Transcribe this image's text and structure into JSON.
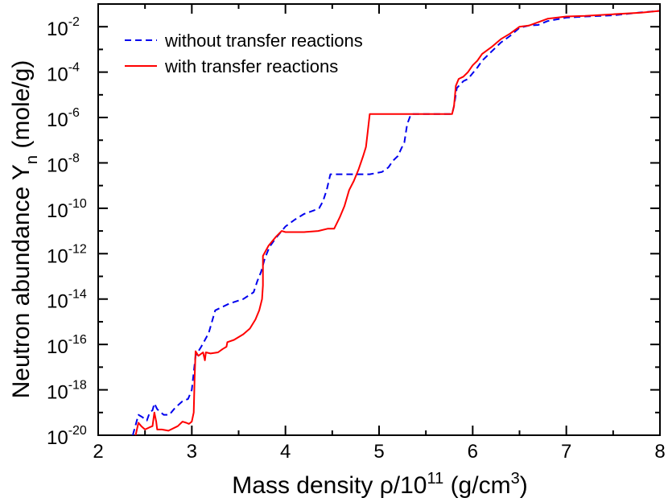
{
  "chart_data": {
    "type": "line",
    "xlabel": "Mass density ρ/10^11 (g/cm^3)",
    "xlabel_parts": {
      "main": "Mass density ρ/10",
      "exp1": "11",
      "mid": " (g/cm",
      "exp2": "3",
      "end": ")"
    },
    "ylabel": "Neutron abundance Y_n (mole/g)",
    "ylabel_parts": {
      "main": "Neutron abundance Y",
      "sub": "n",
      "end": " (mole/g)"
    },
    "xlim": [
      2,
      8
    ],
    "ylim_log10": [
      -20,
      -1
    ],
    "x_ticks": [
      2,
      3,
      4,
      5,
      6,
      7,
      8
    ],
    "x_tick_labels": [
      "2",
      "3",
      "4",
      "5",
      "6",
      "7",
      "8"
    ],
    "y_ticks_log10": [
      -20,
      -18,
      -16,
      -14,
      -12,
      -10,
      -8,
      -6,
      -4,
      -2
    ],
    "y_tick_labels": [
      {
        "base": "10",
        "exp": "-20"
      },
      {
        "base": "10",
        "exp": "-18"
      },
      {
        "base": "10",
        "exp": "-16"
      },
      {
        "base": "10",
        "exp": "-14"
      },
      {
        "base": "10",
        "exp": "-12"
      },
      {
        "base": "10",
        "exp": "-10"
      },
      {
        "base": "10",
        "exp": "-8"
      },
      {
        "base": "10",
        "exp": "-6"
      },
      {
        "base": "10",
        "exp": "-4"
      },
      {
        "base": "10",
        "exp": "-2"
      }
    ],
    "legend_position": "top-left",
    "series": [
      {
        "name": "without transfer reactions",
        "color": "#0000ee",
        "style": "dashed",
        "points_log10": [
          [
            2.37,
            -20.0
          ],
          [
            2.43,
            -19.1
          ],
          [
            2.47,
            -19.2
          ],
          [
            2.52,
            -19.35
          ],
          [
            2.55,
            -19.0
          ],
          [
            2.58,
            -18.9
          ],
          [
            2.6,
            -18.6
          ],
          [
            2.63,
            -18.85
          ],
          [
            2.7,
            -19.1
          ],
          [
            2.76,
            -19.1
          ],
          [
            2.82,
            -18.8
          ],
          [
            2.9,
            -18.5
          ],
          [
            2.96,
            -18.4
          ],
          [
            3.0,
            -18.0
          ],
          [
            3.04,
            -16.5
          ],
          [
            3.1,
            -16.1
          ],
          [
            3.18,
            -15.5
          ],
          [
            3.25,
            -14.5
          ],
          [
            3.4,
            -14.2
          ],
          [
            3.55,
            -14.0
          ],
          [
            3.66,
            -13.7
          ],
          [
            3.7,
            -13.2
          ],
          [
            3.74,
            -12.8
          ],
          [
            3.78,
            -12.2
          ],
          [
            3.83,
            -11.7
          ],
          [
            3.9,
            -11.3
          ],
          [
            4.0,
            -10.8
          ],
          [
            4.1,
            -10.5
          ],
          [
            4.2,
            -10.25
          ],
          [
            4.3,
            -10.1
          ],
          [
            4.36,
            -10.0
          ],
          [
            4.4,
            -9.7
          ],
          [
            4.44,
            -9.2
          ],
          [
            4.48,
            -8.5
          ],
          [
            4.51,
            -8.5
          ],
          [
            4.7,
            -8.5
          ],
          [
            4.9,
            -8.5
          ],
          [
            5.03,
            -8.4
          ],
          [
            5.1,
            -8.2
          ],
          [
            5.15,
            -7.9
          ],
          [
            5.2,
            -7.7
          ],
          [
            5.24,
            -7.35
          ],
          [
            5.27,
            -7.1
          ],
          [
            5.3,
            -6.3
          ],
          [
            5.34,
            -5.85
          ],
          [
            5.5,
            -5.85
          ],
          [
            5.65,
            -5.85
          ],
          [
            5.78,
            -5.85
          ],
          [
            5.8,
            -5.5
          ],
          [
            5.83,
            -4.7
          ],
          [
            5.9,
            -4.4
          ],
          [
            5.95,
            -4.3
          ],
          [
            6.0,
            -4.05
          ],
          [
            6.05,
            -3.8
          ],
          [
            6.1,
            -3.5
          ],
          [
            6.2,
            -3.1
          ],
          [
            6.3,
            -2.7
          ],
          [
            6.4,
            -2.4
          ],
          [
            6.5,
            -2.05
          ],
          [
            6.6,
            -1.95
          ],
          [
            6.7,
            -1.92
          ],
          [
            6.8,
            -1.75
          ],
          [
            7.0,
            -1.6
          ],
          [
            7.2,
            -1.55
          ],
          [
            7.5,
            -1.5
          ],
          [
            7.8,
            -1.37
          ],
          [
            8.0,
            -1.3
          ]
        ]
      },
      {
        "name": "with transfer reactions",
        "color": "#ff0000",
        "style": "solid",
        "points_log10": [
          [
            2.4,
            -20.0
          ],
          [
            2.43,
            -19.45
          ],
          [
            2.46,
            -19.6
          ],
          [
            2.5,
            -19.75
          ],
          [
            2.55,
            -19.65
          ],
          [
            2.58,
            -19.6
          ],
          [
            2.6,
            -19.0
          ],
          [
            2.62,
            -19.4
          ],
          [
            2.63,
            -19.75
          ],
          [
            2.68,
            -19.75
          ],
          [
            2.75,
            -19.8
          ],
          [
            2.85,
            -19.6
          ],
          [
            2.9,
            -19.4
          ],
          [
            2.94,
            -19.45
          ],
          [
            2.97,
            -19.5
          ],
          [
            3.0,
            -19.4
          ],
          [
            3.02,
            -19.0
          ],
          [
            3.03,
            -17.5
          ],
          [
            3.04,
            -16.3
          ],
          [
            3.07,
            -16.5
          ],
          [
            3.12,
            -16.35
          ],
          [
            3.14,
            -16.7
          ],
          [
            3.15,
            -16.35
          ],
          [
            3.2,
            -16.4
          ],
          [
            3.28,
            -16.35
          ],
          [
            3.33,
            -16.2
          ],
          [
            3.37,
            -16.1
          ],
          [
            3.38,
            -15.9
          ],
          [
            3.45,
            -15.8
          ],
          [
            3.55,
            -15.55
          ],
          [
            3.62,
            -15.3
          ],
          [
            3.68,
            -14.9
          ],
          [
            3.72,
            -14.5
          ],
          [
            3.75,
            -14.0
          ],
          [
            3.76,
            -13.4
          ],
          [
            3.76,
            -12.1
          ],
          [
            3.82,
            -11.65
          ],
          [
            3.9,
            -11.25
          ],
          [
            3.96,
            -11.0
          ],
          [
            4.0,
            -11.05
          ],
          [
            4.2,
            -11.05
          ],
          [
            4.35,
            -11.0
          ],
          [
            4.45,
            -10.9
          ],
          [
            4.52,
            -10.9
          ],
          [
            4.58,
            -10.4
          ],
          [
            4.63,
            -9.9
          ],
          [
            4.68,
            -9.2
          ],
          [
            4.73,
            -8.8
          ],
          [
            4.78,
            -8.3
          ],
          [
            4.83,
            -7.7
          ],
          [
            4.86,
            -7.3
          ],
          [
            4.88,
            -6.6
          ],
          [
            4.9,
            -5.85
          ],
          [
            5.0,
            -5.85
          ],
          [
            5.2,
            -5.85
          ],
          [
            5.4,
            -5.85
          ],
          [
            5.6,
            -5.85
          ],
          [
            5.78,
            -5.85
          ],
          [
            5.8,
            -5.5
          ],
          [
            5.82,
            -4.6
          ],
          [
            5.85,
            -4.3
          ],
          [
            5.9,
            -4.2
          ],
          [
            5.95,
            -4.0
          ],
          [
            6.0,
            -3.7
          ],
          [
            6.05,
            -3.5
          ],
          [
            6.1,
            -3.2
          ],
          [
            6.2,
            -2.9
          ],
          [
            6.3,
            -2.55
          ],
          [
            6.4,
            -2.3
          ],
          [
            6.5,
            -2.0
          ],
          [
            6.6,
            -1.95
          ],
          [
            6.7,
            -1.8
          ],
          [
            6.8,
            -1.65
          ],
          [
            7.0,
            -1.55
          ],
          [
            7.2,
            -1.52
          ],
          [
            7.5,
            -1.45
          ],
          [
            7.8,
            -1.38
          ],
          [
            8.0,
            -1.3
          ]
        ]
      }
    ]
  }
}
